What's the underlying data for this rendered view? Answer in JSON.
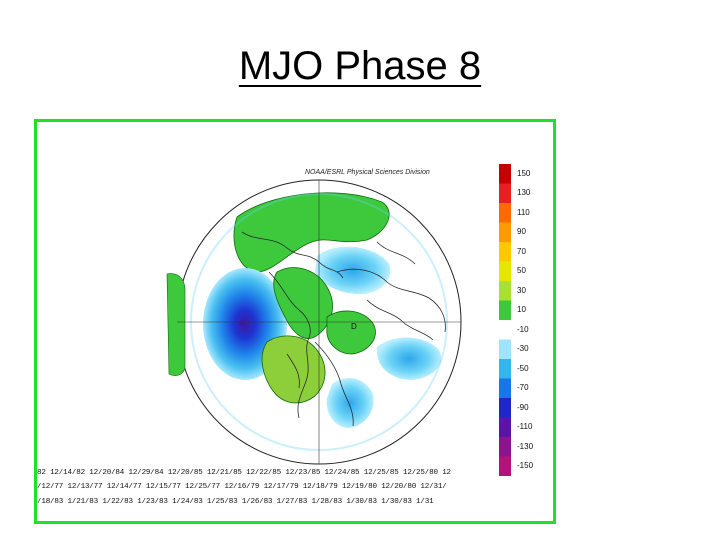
{
  "title": "MJO Phase 8",
  "map": {
    "credit": "NOAA/ESRL Physical Sciences Division",
    "colorbar": {
      "labels": [
        "150",
        "130",
        "110",
        "90",
        "70",
        "50",
        "30",
        "10",
        "-10",
        "-30",
        "-50",
        "-70",
        "-90",
        "-110",
        "-130",
        "-150"
      ],
      "colors": [
        "#c40000",
        "#e82020",
        "#ff6a00",
        "#ff9a00",
        "#ffc800",
        "#e6e600",
        "#a8e036",
        "#3ec83c",
        "#ffffff",
        "#9fe4ff",
        "#36b4ee",
        "#1478e6",
        "#1e28c8",
        "#5a14a8",
        "#8c1490",
        "#b01478"
      ]
    }
  },
  "date_rows": [
    "82 12/14/82 12/20/84 12/29/84 12/20/85 12/21/85 12/22/85 12/23/85 12/24/85 12/25/85 12/25/80 12",
    "/12/77 12/13/77 12/14/77 12/15/77 12/25/77 12/16/79 12/17/79 12/18/79 12/19/80 12/20/80 12/31/",
    "/18/83 1/21/83 1/22/83 1/23/83 1/24/83 1/25/83 1/26/83 1/27/83 1/28/83 1/30/83 1/30/83 1/31"
  ]
}
